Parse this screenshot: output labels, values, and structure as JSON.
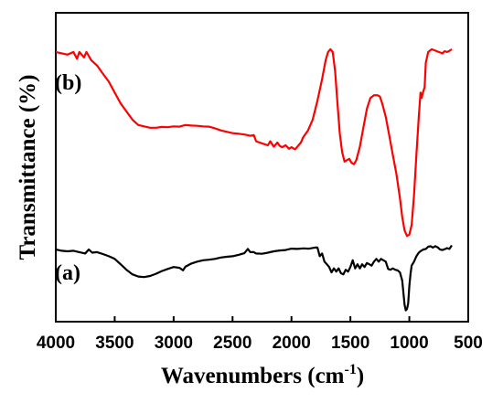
{
  "chart_data": {
    "type": "line",
    "title": "",
    "xlabel": "Wavenumbers (cm",
    "xlabel_sup": "-1",
    "xlabel_close": ")",
    "ylabel": "Transmittance (%)",
    "xlim": [
      4000,
      500
    ],
    "x_reversed": true,
    "ylim": [
      0,
      100
    ],
    "y_ticks_shown": false,
    "grid": false,
    "legend": "none",
    "x_ticks": [
      "4000",
      "3500",
      "3000",
      "2500",
      "2000",
      "1500",
      "1000",
      "500"
    ],
    "x_tick_values": [
      4000,
      3500,
      3000,
      2500,
      2000,
      1500,
      1000,
      500
    ],
    "series": [
      {
        "name": "(b)",
        "color": "#ff0000",
        "points": [
          [
            4000,
            97
          ],
          [
            3900,
            96
          ],
          [
            3850,
            97
          ],
          [
            3820,
            94.5
          ],
          [
            3800,
            97
          ],
          [
            3760,
            95
          ],
          [
            3740,
            97
          ],
          [
            3720,
            95.5
          ],
          [
            3700,
            94
          ],
          [
            3650,
            92
          ],
          [
            3600,
            89
          ],
          [
            3550,
            86
          ],
          [
            3500,
            82
          ],
          [
            3450,
            78
          ],
          [
            3400,
            75
          ],
          [
            3350,
            72
          ],
          [
            3300,
            70
          ],
          [
            3250,
            69.5
          ],
          [
            3200,
            69
          ],
          [
            3150,
            69
          ],
          [
            3100,
            69.3
          ],
          [
            3050,
            69.2
          ],
          [
            3000,
            69.5
          ],
          [
            2950,
            69.4
          ],
          [
            2900,
            70
          ],
          [
            2850,
            69.8
          ],
          [
            2800,
            69.7
          ],
          [
            2750,
            69.5
          ],
          [
            2700,
            69.4
          ],
          [
            2650,
            68.8
          ],
          [
            2600,
            68
          ],
          [
            2550,
            67.5
          ],
          [
            2500,
            67
          ],
          [
            2450,
            66.8
          ],
          [
            2400,
            66.5
          ],
          [
            2350,
            66
          ],
          [
            2320,
            66.3
          ],
          [
            2300,
            64
          ],
          [
            2250,
            63.2
          ],
          [
            2200,
            62.5
          ],
          [
            2180,
            64
          ],
          [
            2150,
            62
          ],
          [
            2120,
            63.5
          ],
          [
            2100,
            62.3
          ],
          [
            2080,
            61.8
          ],
          [
            2050,
            62.5
          ],
          [
            2020,
            61.2
          ],
          [
            2000,
            61.8
          ],
          [
            1970,
            61
          ],
          [
            1950,
            62
          ],
          [
            1920,
            63.5
          ],
          [
            1900,
            65.5
          ],
          [
            1860,
            68
          ],
          [
            1820,
            72
          ],
          [
            1780,
            79
          ],
          [
            1740,
            87
          ],
          [
            1710,
            94
          ],
          [
            1690,
            97
          ],
          [
            1670,
            98
          ],
          [
            1650,
            97
          ],
          [
            1630,
            90
          ],
          [
            1610,
            78
          ],
          [
            1590,
            67
          ],
          [
            1570,
            60
          ],
          [
            1550,
            56.5
          ],
          [
            1530,
            57
          ],
          [
            1510,
            57.5
          ],
          [
            1490,
            56
          ],
          [
            1470,
            55.5
          ],
          [
            1450,
            57
          ],
          [
            1420,
            62
          ],
          [
            1390,
            69
          ],
          [
            1360,
            76
          ],
          [
            1330,
            80
          ],
          [
            1300,
            81
          ],
          [
            1270,
            81
          ],
          [
            1250,
            80.5
          ],
          [
            1230,
            78
          ],
          [
            1200,
            73
          ],
          [
            1170,
            66
          ],
          [
            1140,
            59
          ],
          [
            1110,
            52
          ],
          [
            1080,
            43
          ],
          [
            1060,
            36
          ],
          [
            1040,
            31
          ],
          [
            1020,
            29
          ],
          [
            1000,
            29.5
          ],
          [
            980,
            33
          ],
          [
            960,
            44
          ],
          [
            940,
            59
          ],
          [
            920,
            73
          ],
          [
            905,
            82
          ],
          [
            895,
            80
          ],
          [
            885,
            82
          ],
          [
            870,
            84
          ],
          [
            860,
            93
          ],
          [
            840,
            97
          ],
          [
            810,
            98
          ],
          [
            780,
            97.5
          ],
          [
            750,
            97
          ],
          [
            720,
            96.5
          ],
          [
            700,
            97.3
          ],
          [
            680,
            97
          ],
          [
            660,
            97.4
          ],
          [
            640,
            98
          ]
        ]
      },
      {
        "name": "(a)",
        "color": "#000000",
        "points": [
          [
            4000,
            24
          ],
          [
            3950,
            23.5
          ],
          [
            3900,
            23.3
          ],
          [
            3850,
            23.5
          ],
          [
            3800,
            23
          ],
          [
            3750,
            22.5
          ],
          [
            3720,
            24
          ],
          [
            3690,
            22.8
          ],
          [
            3650,
            23
          ],
          [
            3600,
            22.3
          ],
          [
            3550,
            21.5
          ],
          [
            3500,
            20.5
          ],
          [
            3450,
            18.5
          ],
          [
            3400,
            16.5
          ],
          [
            3350,
            14.8
          ],
          [
            3300,
            14
          ],
          [
            3250,
            13.8
          ],
          [
            3200,
            14.2
          ],
          [
            3150,
            15
          ],
          [
            3100,
            16
          ],
          [
            3050,
            16.8
          ],
          [
            3000,
            17.5
          ],
          [
            2950,
            17.2
          ],
          [
            2920,
            16.3
          ],
          [
            2900,
            17.6
          ],
          [
            2850,
            18.8
          ],
          [
            2800,
            19.5
          ],
          [
            2750,
            20
          ],
          [
            2700,
            20.2
          ],
          [
            2650,
            20.5
          ],
          [
            2600,
            21
          ],
          [
            2550,
            21.3
          ],
          [
            2500,
            21.5
          ],
          [
            2450,
            22
          ],
          [
            2400,
            22.6
          ],
          [
            2370,
            24.2
          ],
          [
            2350,
            23
          ],
          [
            2320,
            23
          ],
          [
            2300,
            22.5
          ],
          [
            2250,
            22.4
          ],
          [
            2200,
            22.8
          ],
          [
            2150,
            23.3
          ],
          [
            2100,
            23.6
          ],
          [
            2050,
            23.8
          ],
          [
            2000,
            24.3
          ],
          [
            1950,
            24.2
          ],
          [
            1900,
            24.4
          ],
          [
            1850,
            24.3
          ],
          [
            1800,
            24.7
          ],
          [
            1780,
            24.7
          ],
          [
            1760,
            21.5
          ],
          [
            1740,
            22.5
          ],
          [
            1720,
            19.5
          ],
          [
            1700,
            18.5
          ],
          [
            1680,
            17.5
          ],
          [
            1660,
            15.5
          ],
          [
            1640,
            17
          ],
          [
            1620,
            15.8
          ],
          [
            1600,
            17
          ],
          [
            1580,
            15.2
          ],
          [
            1560,
            14.8
          ],
          [
            1540,
            16.5
          ],
          [
            1520,
            15.8
          ],
          [
            1500,
            17.5
          ],
          [
            1480,
            20
          ],
          [
            1460,
            17
          ],
          [
            1440,
            18.5
          ],
          [
            1420,
            17
          ],
          [
            1400,
            18.5
          ],
          [
            1380,
            17.5
          ],
          [
            1360,
            19
          ],
          [
            1340,
            18.5
          ],
          [
            1320,
            18
          ],
          [
            1300,
            19.5
          ],
          [
            1280,
            20.5
          ],
          [
            1260,
            19.5
          ],
          [
            1240,
            20.5
          ],
          [
            1220,
            20
          ],
          [
            1200,
            19.5
          ],
          [
            1180,
            16.8
          ],
          [
            1160,
            16.5
          ],
          [
            1140,
            17
          ],
          [
            1120,
            16.5
          ],
          [
            1100,
            16.3
          ],
          [
            1080,
            15.5
          ],
          [
            1060,
            12.5
          ],
          [
            1050,
            8
          ],
          [
            1040,
            3.5
          ],
          [
            1030,
            1.5
          ],
          [
            1020,
            2
          ],
          [
            1010,
            4
          ],
          [
            1000,
            10.5
          ],
          [
            990,
            15
          ],
          [
            980,
            18
          ],
          [
            960,
            19.5
          ],
          [
            940,
            21.5
          ],
          [
            920,
            22.8
          ],
          [
            900,
            23.5
          ],
          [
            880,
            24
          ],
          [
            860,
            24.2
          ],
          [
            840,
            25
          ],
          [
            820,
            25.2
          ],
          [
            800,
            24.7
          ],
          [
            780,
            25.2
          ],
          [
            760,
            24.8
          ],
          [
            740,
            24
          ],
          [
            720,
            23.8
          ],
          [
            700,
            24.1
          ],
          [
            680,
            24.5
          ],
          [
            660,
            24.2
          ],
          [
            640,
            25.5
          ]
        ]
      }
    ]
  }
}
